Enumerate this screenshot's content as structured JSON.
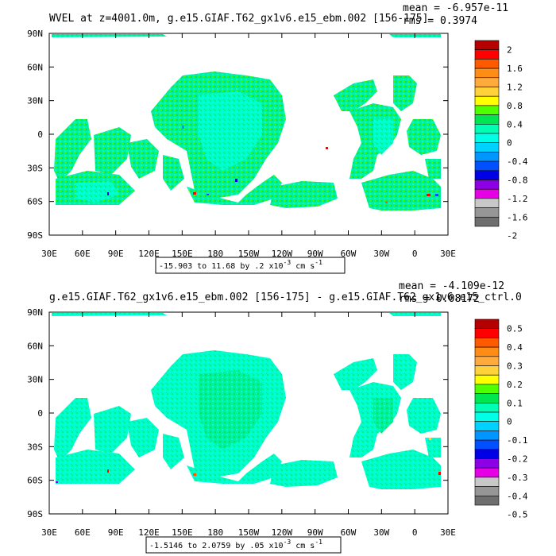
{
  "chart_data": [
    {
      "type": "heatmap",
      "title": "WVEL at z=4001.0m, g.e15.GIAF.T62_gx1v6.e15_ebm.002 [156-175]",
      "mean_text": "mean = -6.957e-11",
      "rms_text": "rms = 0.3974",
      "range_text": "-15.903 to 11.68 by .2 x10",
      "range_exp": "-3",
      "range_unit": " cm s",
      "range_unit_exp": "-1",
      "x_ticks": [
        "30E",
        "60E",
        "90E",
        "120E",
        "150E",
        "180",
        "150W",
        "120W",
        "90W",
        "60W",
        "30W",
        "0",
        "30E"
      ],
      "y_ticks": [
        "90N",
        "60N",
        "30N",
        "0",
        "30S",
        "60S",
        "90S"
      ],
      "colorbar_labels": [
        "2",
        "1.6",
        "1.2",
        "0.8",
        "0.4",
        "0",
        "-0.4",
        "-0.8",
        "-1.2",
        "-1.6",
        "-2"
      ],
      "colorbar_colors": [
        "#B40000",
        "#FF0000",
        "#FF5A00",
        "#FF8C14",
        "#FFAA3C",
        "#FFD23C",
        "#FFFF00",
        "#50FF00",
        "#00E650",
        "#00FFB4",
        "#00FFE6",
        "#00D2FF",
        "#0096FF",
        "#0050FF",
        "#0000E6",
        "#8C00E6",
        "#E600E6",
        "#C8C8C8",
        "#969696",
        "#6E6E6E"
      ]
    },
    {
      "type": "heatmap",
      "title": "g.e15.GIAF.T62_gx1v6.e15_ebm.002 [156-175] - g.e15.GIAF.T62_gx1v6.e15_ctrl.0",
      "mean_text": "mean = -4.109e-12",
      "rms_text": "rms = 0.08172",
      "range_text": "-1.5146 to 2.0759 by .05 x10",
      "range_exp": "-3",
      "range_unit": " cm s",
      "range_unit_exp": "-1",
      "x_ticks": [
        "30E",
        "60E",
        "90E",
        "120E",
        "150E",
        "180",
        "150W",
        "120W",
        "90W",
        "60W",
        "30W",
        "0",
        "30E"
      ],
      "y_ticks": [
        "90N",
        "60N",
        "30N",
        "0",
        "30S",
        "60S",
        "90S"
      ],
      "colorbar_labels": [
        "0.5",
        "0.4",
        "0.3",
        "0.2",
        "0.1",
        "0",
        "-0.1",
        "-0.2",
        "-0.3",
        "-0.4",
        "-0.5"
      ],
      "colorbar_colors": [
        "#B40000",
        "#FF0000",
        "#FF5A00",
        "#FF8C14",
        "#FFAA3C",
        "#FFD23C",
        "#FFFF00",
        "#50FF00",
        "#00E650",
        "#00FFB4",
        "#00FFE6",
        "#00D2FF",
        "#0096FF",
        "#0050FF",
        "#0000E6",
        "#8C00E6",
        "#E600E6",
        "#C8C8C8",
        "#969696",
        "#6E6E6E"
      ]
    }
  ]
}
